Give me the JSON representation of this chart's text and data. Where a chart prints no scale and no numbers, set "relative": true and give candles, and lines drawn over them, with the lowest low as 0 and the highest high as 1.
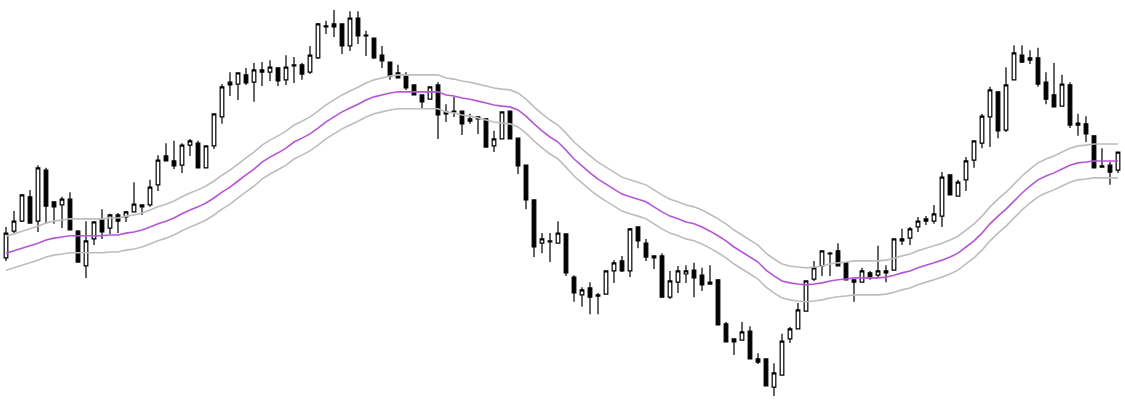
{
  "chart_data": {
    "type": "candlestick",
    "relative": true,
    "categories": [
      null,
      null,
      null,
      null,
      null,
      null,
      null,
      null,
      null,
      null,
      null,
      null,
      null,
      null,
      null,
      null,
      null,
      null,
      null,
      null,
      null,
      null,
      null,
      null,
      null,
      null,
      null,
      null,
      null,
      null,
      null,
      null,
      null,
      null,
      null,
      null,
      null,
      null,
      null,
      null,
      null,
      null,
      null,
      null,
      null,
      null,
      null,
      null,
      null,
      null,
      null,
      null,
      null,
      null,
      null,
      null,
      null,
      null,
      null,
      null,
      null,
      null,
      null,
      null,
      null,
      null,
      null,
      null,
      null,
      null,
      null,
      null,
      null,
      null,
      null,
      null,
      null,
      null,
      null,
      null,
      null,
      null,
      null,
      null,
      null,
      null,
      null,
      null,
      null,
      null,
      null,
      null,
      null,
      null,
      null,
      null,
      null,
      null,
      null,
      null,
      null,
      null,
      null,
      null,
      null,
      null,
      null,
      null,
      null,
      null,
      null,
      null,
      null,
      null,
      null,
      null,
      null,
      null,
      null,
      null,
      null,
      null,
      null,
      null,
      null,
      null,
      null,
      null,
      null,
      null,
      null,
      null,
      null,
      null,
      null,
      null,
      null,
      null,
      null,
      null
    ],
    "ohlc": [
      [
        0.358,
        0.438,
        0.35,
        0.422
      ],
      [
        0.427,
        0.479,
        0.422,
        0.453
      ],
      [
        0.453,
        0.523,
        0.451,
        0.521
      ],
      [
        0.516,
        0.534,
        0.448,
        0.448
      ],
      [
        0.453,
        0.598,
        0.425,
        0.591
      ],
      [
        0.585,
        0.591,
        0.446,
        0.492
      ],
      [
        0.503,
        0.503,
        0.446,
        0.49
      ],
      [
        0.495,
        0.516,
        0.435,
        0.51
      ],
      [
        0.51,
        0.528,
        0.43,
        0.43
      ],
      [
        0.427,
        0.43,
        0.347,
        0.347
      ],
      [
        0.337,
        0.453,
        0.306,
        0.402
      ],
      [
        0.407,
        0.451,
        0.391,
        0.451
      ],
      [
        0.456,
        0.484,
        0.407,
        0.425
      ],
      [
        0.435,
        0.472,
        0.42,
        0.469
      ],
      [
        0.469,
        0.474,
        0.422,
        0.453
      ],
      [
        0.464,
        0.479,
        0.451,
        0.477
      ],
      [
        0.477,
        0.554,
        0.477,
        0.497
      ],
      [
        0.495,
        0.497,
        0.469,
        0.49
      ],
      [
        0.495,
        0.56,
        0.49,
        0.541
      ],
      [
        0.547,
        0.624,
        0.531,
        0.611
      ],
      [
        0.622,
        0.655,
        0.609,
        0.609
      ],
      [
        0.609,
        0.661,
        0.588,
        0.596
      ],
      [
        0.598,
        0.655,
        0.578,
        0.65
      ],
      [
        0.65,
        0.666,
        0.622,
        0.661
      ],
      [
        0.655,
        0.661,
        0.591,
        0.591
      ],
      [
        0.591,
        0.648,
        0.591,
        0.648
      ],
      [
        0.648,
        0.731,
        0.64,
        0.731
      ],
      [
        0.723,
        0.808,
        0.705,
        0.801
      ],
      [
        0.813,
        0.839,
        0.777,
        0.806
      ],
      [
        0.808,
        0.839,
        0.767,
        0.837
      ],
      [
        0.832,
        0.85,
        0.806,
        0.811
      ],
      [
        0.813,
        0.863,
        0.762,
        0.845
      ],
      [
        0.839,
        0.865,
        0.803,
        0.845
      ],
      [
        0.839,
        0.87,
        0.816,
        0.852
      ],
      [
        0.85,
        0.852,
        0.803,
        0.816
      ],
      [
        0.819,
        0.883,
        0.806,
        0.852
      ],
      [
        0.855,
        0.878,
        0.811,
        0.858
      ],
      [
        0.858,
        0.863,
        0.819,
        0.834
      ],
      [
        0.839,
        0.907,
        0.834,
        0.883
      ],
      [
        0.876,
        0.966,
        0.873,
        0.964
      ],
      [
        0.956,
        0.972,
        0.938,
        0.959
      ],
      [
        0.964,
        1.0,
        0.93,
        0.956
      ],
      [
        0.964,
        0.964,
        0.886,
        0.907
      ],
      [
        0.907,
        0.997,
        0.894,
        0.979
      ],
      [
        0.979,
        0.997,
        0.912,
        0.933
      ],
      [
        0.935,
        0.946,
        0.881,
        0.933
      ],
      [
        0.927,
        0.927,
        0.873,
        0.876
      ],
      [
        0.883,
        0.907,
        0.85,
        0.868
      ],
      [
        0.865,
        0.865,
        0.819,
        0.829
      ],
      [
        0.837,
        0.858,
        0.824,
        0.824
      ],
      [
        0.829,
        0.839,
        0.793,
        0.798
      ],
      [
        0.806,
        0.806,
        0.78,
        0.78
      ],
      [
        0.78,
        0.78,
        0.746,
        0.762
      ],
      [
        0.769,
        0.801,
        0.769,
        0.801
      ],
      [
        0.806,
        0.813,
        0.666,
        0.728
      ],
      [
        0.731,
        0.756,
        0.71,
        0.736
      ],
      [
        0.736,
        0.775,
        0.723,
        0.738
      ],
      [
        0.738,
        0.738,
        0.676,
        0.705
      ],
      [
        0.712,
        0.731,
        0.705,
        0.718
      ],
      [
        0.718,
        0.723,
        0.679,
        0.723
      ],
      [
        0.718,
        0.718,
        0.645,
        0.645
      ],
      [
        0.648,
        0.687,
        0.632,
        0.666
      ],
      [
        0.666,
        0.736,
        0.666,
        0.736
      ],
      [
        0.738,
        0.738,
        0.666,
        0.666
      ],
      [
        0.668,
        0.668,
        0.575,
        0.596
      ],
      [
        0.598,
        0.598,
        0.484,
        0.508
      ],
      [
        0.508,
        0.508,
        0.36,
        0.386
      ],
      [
        0.396,
        0.422,
        0.37,
        0.407
      ],
      [
        0.399,
        0.422,
        0.347,
        0.402
      ],
      [
        0.396,
        0.453,
        0.396,
        0.422
      ],
      [
        0.42,
        0.42,
        0.311,
        0.319
      ],
      [
        0.308,
        0.313,
        0.244,
        0.267
      ],
      [
        0.262,
        0.282,
        0.231,
        0.275
      ],
      [
        0.28,
        0.295,
        0.212,
        0.256
      ],
      [
        0.259,
        0.267,
        0.212,
        0.262
      ],
      [
        0.264,
        0.324,
        0.262,
        0.324
      ],
      [
        0.324,
        0.352,
        0.293,
        0.345
      ],
      [
        0.35,
        0.363,
        0.321,
        0.324
      ],
      [
        0.324,
        0.435,
        0.308,
        0.433
      ],
      [
        0.438,
        0.438,
        0.383,
        0.402
      ],
      [
        0.396,
        0.407,
        0.35,
        0.36
      ],
      [
        0.363,
        0.363,
        0.329,
        0.358
      ],
      [
        0.363,
        0.37,
        0.256,
        0.256
      ],
      [
        0.256,
        0.324,
        0.251,
        0.298
      ],
      [
        0.295,
        0.337,
        0.267,
        0.324
      ],
      [
        0.316,
        0.339,
        0.293,
        0.324
      ],
      [
        0.326,
        0.345,
        0.256,
        0.306
      ],
      [
        0.313,
        0.332,
        0.272,
        0.288
      ],
      [
        0.295,
        0.339,
        0.29,
        0.29
      ],
      [
        0.301,
        0.301,
        0.184,
        0.184
      ],
      [
        0.187,
        0.192,
        0.14,
        0.14
      ],
      [
        0.148,
        0.148,
        0.106,
        0.14
      ],
      [
        0.145,
        0.192,
        0.145,
        0.166
      ],
      [
        0.168,
        0.181,
        0.096,
        0.096
      ],
      [
        0.096,
        0.111,
        0.083,
        0.088
      ],
      [
        0.096,
        0.098,
        0.026,
        0.026
      ],
      [
        0.023,
        0.085,
        0.0,
        0.06
      ],
      [
        0.054,
        0.161,
        0.054,
        0.142
      ],
      [
        0.148,
        0.179,
        0.137,
        0.174
      ],
      [
        0.174,
        0.241,
        0.174,
        0.223
      ],
      [
        0.22,
        0.298,
        0.22,
        0.298
      ],
      [
        0.303,
        0.35,
        0.298,
        0.332
      ],
      [
        0.337,
        0.376,
        0.311,
        0.376
      ],
      [
        0.368,
        0.373,
        0.311,
        0.37
      ],
      [
        0.376,
        0.396,
        0.337,
        0.337
      ],
      [
        0.345,
        0.345,
        0.301,
        0.301
      ],
      [
        0.301,
        0.301,
        0.244,
        0.295
      ],
      [
        0.295,
        0.332,
        0.295,
        0.324
      ],
      [
        0.319,
        0.324,
        0.301,
        0.306
      ],
      [
        0.313,
        0.389,
        0.306,
        0.324
      ],
      [
        0.319,
        0.339,
        0.295,
        0.324
      ],
      [
        0.326,
        0.407,
        0.326,
        0.407
      ],
      [
        0.402,
        0.433,
        0.391,
        0.407
      ],
      [
        0.409,
        0.438,
        0.391,
        0.433
      ],
      [
        0.438,
        0.464,
        0.425,
        0.453
      ],
      [
        0.453,
        0.466,
        0.443,
        0.459
      ],
      [
        0.453,
        0.495,
        0.446,
        0.472
      ],
      [
        0.466,
        0.58,
        0.438,
        0.567
      ],
      [
        0.573,
        0.573,
        0.521,
        0.521
      ],
      [
        0.518,
        0.56,
        0.518,
        0.554
      ],
      [
        0.56,
        0.619,
        0.531,
        0.609
      ],
      [
        0.611,
        0.661,
        0.591,
        0.661
      ],
      [
        0.655,
        0.731,
        0.642,
        0.725
      ],
      [
        0.723,
        0.801,
        0.645,
        0.793
      ],
      [
        0.788,
        0.788,
        0.668,
        0.687
      ],
      [
        0.689,
        0.852,
        0.684,
        0.806
      ],
      [
        0.819,
        0.909,
        0.819,
        0.889
      ],
      [
        0.883,
        0.909,
        0.863,
        0.865
      ],
      [
        0.87,
        0.896,
        0.86,
        0.876
      ],
      [
        0.876,
        0.902,
        0.801,
        0.808
      ],
      [
        0.813,
        0.839,
        0.756,
        0.769
      ],
      [
        0.78,
        0.863,
        0.749,
        0.749
      ],
      [
        0.751,
        0.832,
        0.751,
        0.808
      ],
      [
        0.806,
        0.813,
        0.694,
        0.702
      ],
      [
        0.707,
        0.731,
        0.674,
        0.702
      ],
      [
        0.705,
        0.725,
        0.658,
        0.679
      ],
      [
        0.674,
        0.674,
        0.591,
        0.591
      ],
      [
        0.593,
        0.642,
        0.591,
        0.596
      ],
      [
        0.598,
        0.606,
        0.547,
        0.58
      ],
      [
        0.585,
        0.632,
        0.578,
        0.632
      ]
    ],
    "series": [
      {
        "type": "line",
        "color": "#bdbdbd",
        "values": [
          0.414,
          0.42,
          0.427,
          0.433,
          0.44,
          0.448,
          0.453,
          0.456,
          0.459,
          0.459,
          0.459,
          0.459,
          0.459,
          0.461,
          0.461,
          0.466,
          0.469,
          0.474,
          0.482,
          0.49,
          0.497,
          0.505,
          0.516,
          0.526,
          0.534,
          0.544,
          0.557,
          0.572,
          0.585,
          0.601,
          0.617,
          0.632,
          0.65,
          0.663,
          0.674,
          0.686,
          0.702,
          0.712,
          0.723,
          0.738,
          0.754,
          0.767,
          0.78,
          0.79,
          0.8,
          0.811,
          0.819,
          0.824,
          0.829,
          0.832,
          0.832,
          0.832,
          0.832,
          0.832,
          0.832,
          0.824,
          0.821,
          0.816,
          0.813,
          0.808,
          0.803,
          0.798,
          0.795,
          0.793,
          0.785,
          0.769,
          0.749,
          0.731,
          0.715,
          0.702,
          0.681,
          0.658,
          0.64,
          0.622,
          0.606,
          0.593,
          0.58,
          0.567,
          0.56,
          0.554,
          0.547,
          0.534,
          0.521,
          0.51,
          0.503,
          0.495,
          0.49,
          0.482,
          0.471,
          0.459,
          0.446,
          0.43,
          0.417,
          0.404,
          0.391,
          0.37,
          0.355,
          0.342,
          0.337,
          0.334,
          0.332,
          0.334,
          0.337,
          0.342,
          0.345,
          0.347,
          0.35,
          0.35,
          0.35,
          0.35,
          0.352,
          0.357,
          0.363,
          0.368,
          0.376,
          0.383,
          0.389,
          0.396,
          0.404,
          0.414,
          0.43,
          0.446,
          0.466,
          0.49,
          0.51,
          0.528,
          0.549,
          0.57,
          0.588,
          0.604,
          0.614,
          0.622,
          0.632,
          0.642,
          0.648,
          0.65,
          0.653,
          0.653,
          0.653,
          0.653
        ]
      },
      {
        "type": "line",
        "color": "#b556d6",
        "values": [
          0.37,
          0.376,
          0.383,
          0.389,
          0.396,
          0.404,
          0.409,
          0.412,
          0.415,
          0.415,
          0.415,
          0.415,
          0.415,
          0.417,
          0.417,
          0.422,
          0.425,
          0.43,
          0.438,
          0.446,
          0.453,
          0.461,
          0.472,
          0.482,
          0.49,
          0.5,
          0.513,
          0.528,
          0.541,
          0.557,
          0.573,
          0.588,
          0.606,
          0.619,
          0.63,
          0.642,
          0.658,
          0.668,
          0.679,
          0.694,
          0.71,
          0.723,
          0.736,
          0.746,
          0.756,
          0.767,
          0.775,
          0.78,
          0.785,
          0.788,
          0.788,
          0.788,
          0.788,
          0.788,
          0.788,
          0.78,
          0.777,
          0.772,
          0.769,
          0.764,
          0.759,
          0.754,
          0.751,
          0.749,
          0.741,
          0.725,
          0.705,
          0.687,
          0.671,
          0.658,
          0.637,
          0.614,
          0.596,
          0.578,
          0.562,
          0.549,
          0.536,
          0.523,
          0.516,
          0.51,
          0.503,
          0.49,
          0.477,
          0.466,
          0.459,
          0.451,
          0.446,
          0.438,
          0.427,
          0.415,
          0.402,
          0.386,
          0.373,
          0.36,
          0.347,
          0.326,
          0.311,
          0.298,
          0.293,
          0.29,
          0.288,
          0.29,
          0.293,
          0.298,
          0.301,
          0.303,
          0.306,
          0.306,
          0.306,
          0.306,
          0.308,
          0.313,
          0.319,
          0.324,
          0.332,
          0.339,
          0.345,
          0.352,
          0.36,
          0.37,
          0.386,
          0.402,
          0.422,
          0.446,
          0.466,
          0.484,
          0.505,
          0.526,
          0.544,
          0.56,
          0.57,
          0.578,
          0.588,
          0.598,
          0.604,
          0.606,
          0.609,
          0.609,
          0.609,
          0.609
        ]
      },
      {
        "type": "line",
        "color": "#bdbdbd",
        "values": [
          0.326,
          0.332,
          0.339,
          0.345,
          0.352,
          0.36,
          0.365,
          0.368,
          0.371,
          0.371,
          0.371,
          0.371,
          0.371,
          0.373,
          0.373,
          0.378,
          0.381,
          0.386,
          0.394,
          0.402,
          0.409,
          0.417,
          0.428,
          0.438,
          0.446,
          0.456,
          0.469,
          0.484,
          0.497,
          0.513,
          0.529,
          0.544,
          0.562,
          0.575,
          0.586,
          0.598,
          0.614,
          0.624,
          0.635,
          0.65,
          0.666,
          0.679,
          0.692,
          0.702,
          0.712,
          0.723,
          0.731,
          0.736,
          0.741,
          0.744,
          0.744,
          0.744,
          0.744,
          0.744,
          0.744,
          0.736,
          0.733,
          0.728,
          0.725,
          0.72,
          0.715,
          0.71,
          0.707,
          0.705,
          0.697,
          0.681,
          0.661,
          0.643,
          0.627,
          0.614,
          0.593,
          0.57,
          0.552,
          0.534,
          0.518,
          0.505,
          0.492,
          0.479,
          0.472,
          0.466,
          0.459,
          0.446,
          0.433,
          0.422,
          0.415,
          0.407,
          0.402,
          0.394,
          0.383,
          0.371,
          0.358,
          0.342,
          0.329,
          0.316,
          0.303,
          0.282,
          0.267,
          0.254,
          0.249,
          0.246,
          0.244,
          0.246,
          0.249,
          0.254,
          0.257,
          0.259,
          0.262,
          0.262,
          0.262,
          0.262,
          0.264,
          0.269,
          0.275,
          0.28,
          0.288,
          0.295,
          0.301,
          0.308,
          0.316,
          0.326,
          0.342,
          0.358,
          0.378,
          0.402,
          0.422,
          0.44,
          0.461,
          0.482,
          0.5,
          0.516,
          0.526,
          0.534,
          0.544,
          0.554,
          0.56,
          0.562,
          0.565,
          0.565,
          0.565,
          0.565
        ]
      }
    ]
  }
}
